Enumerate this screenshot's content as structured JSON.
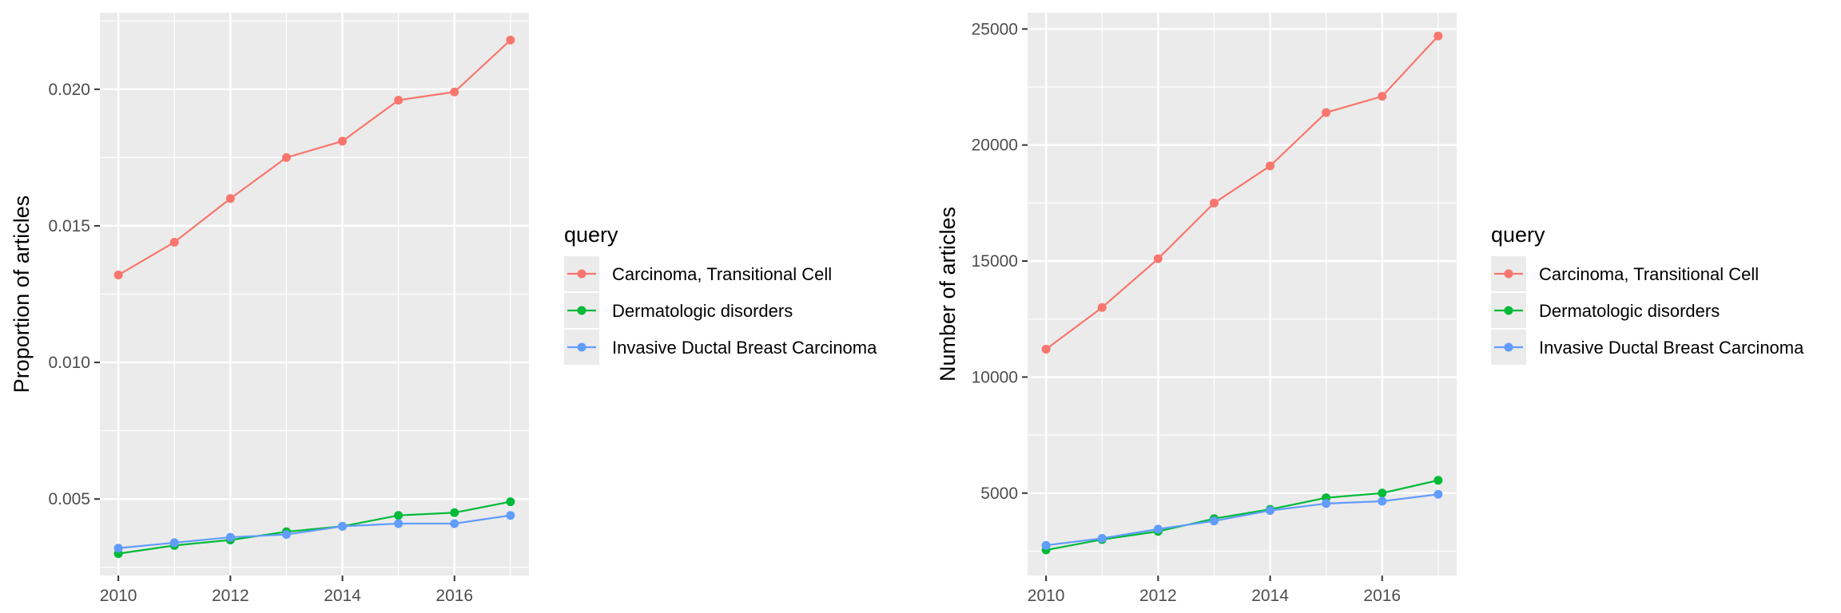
{
  "chart_data": [
    {
      "type": "line",
      "title": "",
      "xlabel": "",
      "ylabel": "Proportion of articles",
      "x": [
        2010,
        2011,
        2012,
        2013,
        2014,
        2015,
        2016,
        2017
      ],
      "xlim": [
        2009.67,
        2017.33
      ],
      "ylim": [
        0.0022,
        0.0228
      ],
      "xticks": [
        2010,
        2012,
        2014,
        2016
      ],
      "xtick_labels": [
        "2010",
        "2012",
        "2014",
        "2016"
      ],
      "yticks": [
        0.005,
        0.01,
        0.015,
        0.02
      ],
      "ytick_labels": [
        "0.005",
        "0.010",
        "0.015",
        "0.020"
      ],
      "legend_title": "query",
      "legend_position": "right",
      "grid": true,
      "series": [
        {
          "name": "Carcinoma, Transitional Cell",
          "color": "#F8766D",
          "values": [
            0.0132,
            0.0144,
            0.016,
            0.0175,
            0.0181,
            0.0196,
            0.0199,
            0.0218
          ]
        },
        {
          "name": "Dermatologic disorders",
          "color": "#00BA38",
          "values": [
            0.003,
            0.0033,
            0.0035,
            0.0038,
            0.004,
            0.0044,
            0.0045,
            0.0049
          ]
        },
        {
          "name": "Invasive Ductal Breast Carcinoma",
          "color": "#619CFF",
          "values": [
            0.0032,
            0.0034,
            0.0036,
            0.0037,
            0.004,
            0.0041,
            0.0041,
            0.0044
          ]
        }
      ]
    },
    {
      "type": "line",
      "title": "",
      "xlabel": "",
      "ylabel": "Number of articles",
      "x": [
        2010,
        2011,
        2012,
        2013,
        2014,
        2015,
        2016,
        2017
      ],
      "xlim": [
        2009.67,
        2017.33
      ],
      "ylim": [
        1450,
        25700
      ],
      "xticks": [
        2010,
        2012,
        2014,
        2016
      ],
      "xtick_labels": [
        "2010",
        "2012",
        "2014",
        "2016"
      ],
      "yticks": [
        5000,
        10000,
        15000,
        20000,
        25000
      ],
      "ytick_labels": [
        "5000",
        "10000",
        "15000",
        "20000",
        "25000"
      ],
      "legend_title": "query",
      "legend_position": "right",
      "grid": true,
      "series": [
        {
          "name": "Carcinoma, Transitional Cell",
          "color": "#F8766D",
          "values": [
            11200,
            13000,
            15100,
            17500,
            19100,
            21400,
            22100,
            24700
          ]
        },
        {
          "name": "Dermatologic disorders",
          "color": "#00BA38",
          "values": [
            2550,
            3000,
            3350,
            3900,
            4300,
            4800,
            5000,
            5550
          ]
        },
        {
          "name": "Invasive Ductal Breast Carcinoma",
          "color": "#619CFF",
          "values": [
            2750,
            3050,
            3450,
            3800,
            4250,
            4550,
            4650,
            4950
          ]
        }
      ]
    }
  ]
}
